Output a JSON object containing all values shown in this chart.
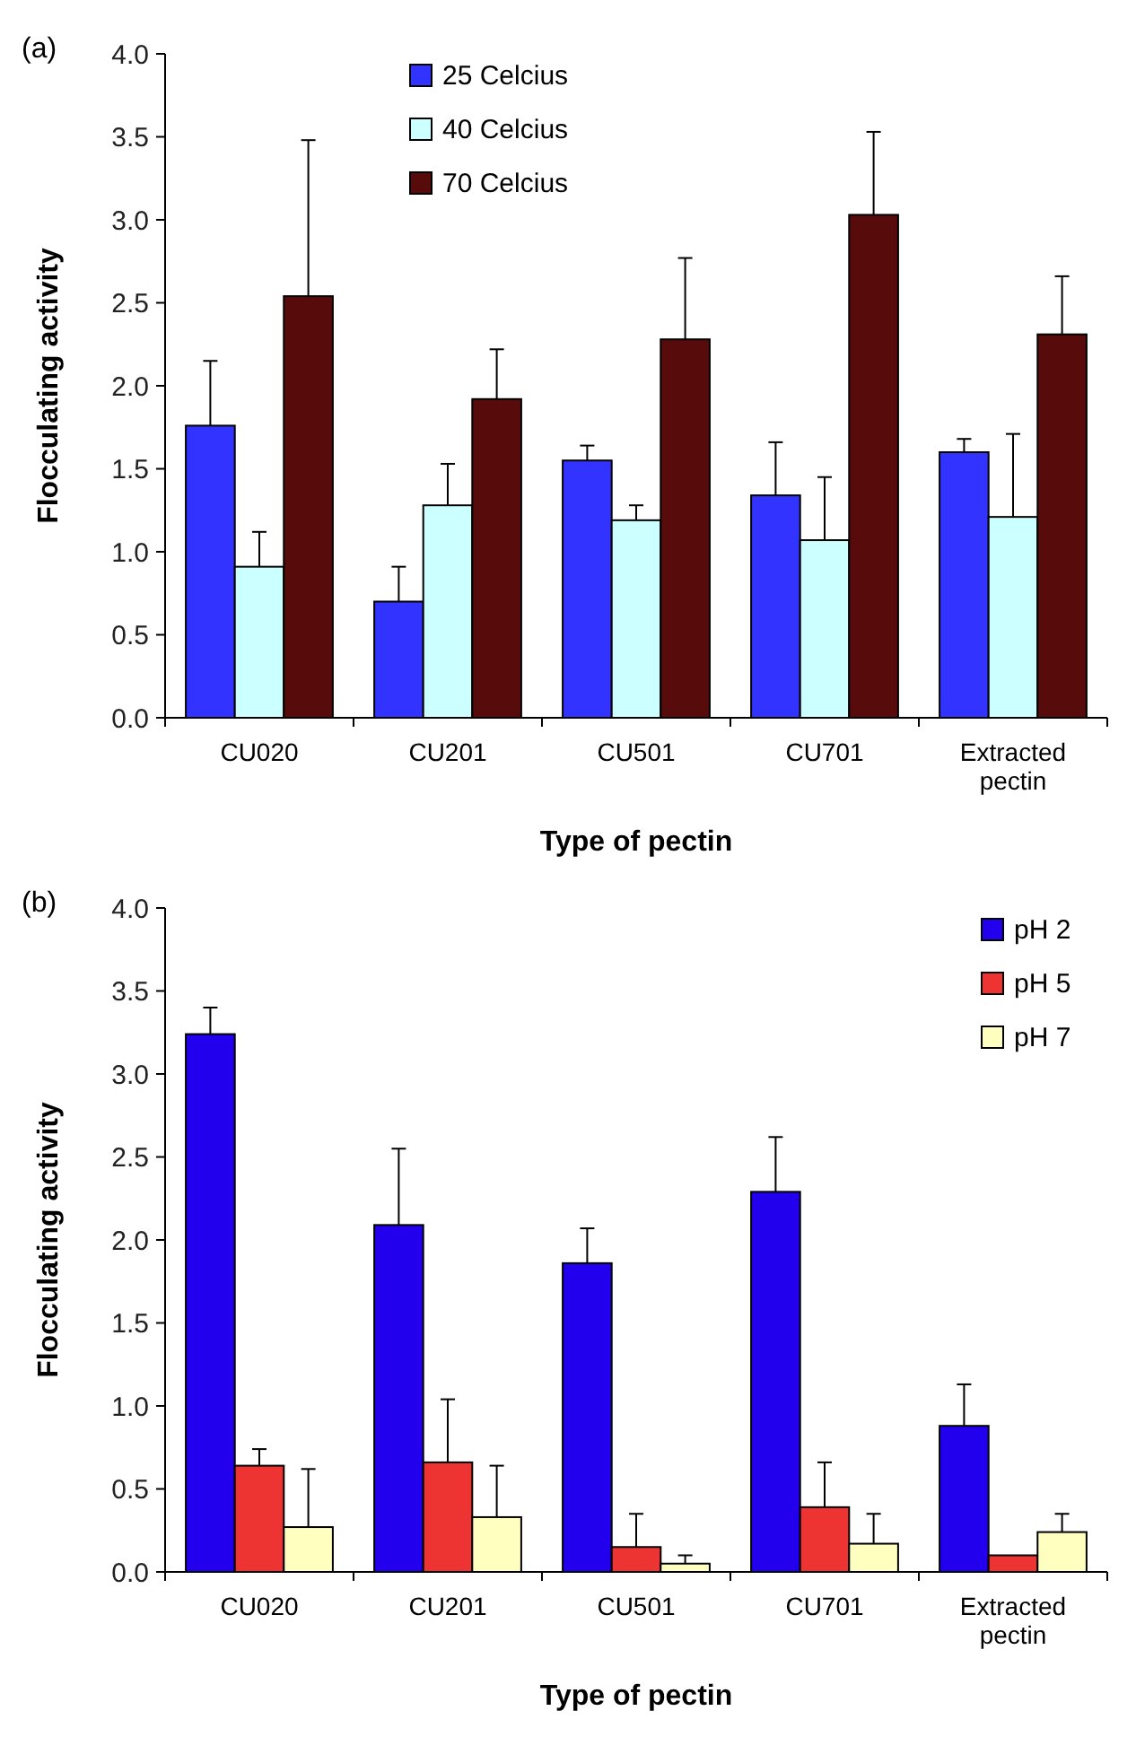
{
  "chart_data": [
    {
      "type": "bar",
      "annotations": [
        "(a)"
      ],
      "xlabel": "Type of pectin",
      "ylabel": "Flocculating activity",
      "categories": [
        "CU020",
        "CU201",
        "CU501",
        "CU701",
        "Extracted pectin"
      ],
      "ylim": [
        0,
        4
      ],
      "yticks": [
        {
          "value": 0,
          "label": "0.0"
        },
        {
          "value": 0.5,
          "label": "0.5"
        },
        {
          "value": 1,
          "label": "1.0"
        },
        {
          "value": 1.5,
          "label": "1.5"
        },
        {
          "value": 2,
          "label": "2.0"
        },
        {
          "value": 2.5,
          "label": "2.5"
        },
        {
          "value": 3,
          "label": "3.0"
        },
        {
          "value": 3.5,
          "label": "3.5"
        },
        {
          "value": 4,
          "label": "4.0"
        }
      ],
      "legend": "top",
      "grid": false,
      "series": [
        {
          "name": "25 Celcius",
          "color": "#3333ff",
          "values": [
            1.76,
            0.7,
            1.55,
            1.34,
            1.6
          ],
          "errors": [
            [
              1.76,
              2.15
            ],
            [
              0.7,
              0.91
            ],
            [
              1.55,
              1.64
            ],
            [
              1.34,
              1.66
            ],
            [
              1.6,
              1.68
            ]
          ]
        },
        {
          "name": "40 Celcius",
          "color": "#ccffff",
          "values": [
            0.91,
            1.28,
            1.19,
            1.07,
            1.21
          ],
          "errors": [
            [
              0.91,
              1.12
            ],
            [
              1.28,
              1.53
            ],
            [
              1.19,
              1.28
            ],
            [
              1.07,
              1.45
            ],
            [
              1.21,
              1.71
            ]
          ]
        },
        {
          "name": "70 Celcius",
          "color": "#580b0b",
          "values": [
            2.54,
            1.92,
            2.28,
            3.03,
            2.31
          ],
          "errors": [
            [
              2.54,
              3.48
            ],
            [
              1.92,
              2.22
            ],
            [
              2.28,
              2.77
            ],
            [
              3.03,
              3.53
            ],
            [
              2.31,
              2.66
            ]
          ]
        }
      ]
    },
    {
      "type": "bar",
      "annotations": [
        "(b)"
      ],
      "xlabel": "Type of pectin",
      "ylabel": "Flocculating activity",
      "categories": [
        "CU020",
        "CU201",
        "CU501",
        "CU701",
        "Extracted pectin"
      ],
      "ylim": [
        0,
        4
      ],
      "yticks": [
        {
          "value": 0,
          "label": "0.0"
        },
        {
          "value": 0.5,
          "label": "0.5"
        },
        {
          "value": 1,
          "label": "1.0"
        },
        {
          "value": 1.5,
          "label": "1.5"
        },
        {
          "value": 2,
          "label": "2.0"
        },
        {
          "value": 2.5,
          "label": "2.5"
        },
        {
          "value": 3,
          "label": "3.0"
        },
        {
          "value": 3.5,
          "label": "3.5"
        },
        {
          "value": 4,
          "label": "4.0"
        }
      ],
      "legend": "top right",
      "grid": false,
      "series": [
        {
          "name": "pH 2",
          "color": "#2200ee",
          "values": [
            3.24,
            2.09,
            1.86,
            2.29,
            0.88
          ],
          "errors": [
            [
              3.24,
              3.4
            ],
            [
              2.09,
              2.55
            ],
            [
              1.86,
              2.07
            ],
            [
              2.29,
              2.62
            ],
            [
              0.88,
              1.13
            ]
          ]
        },
        {
          "name": "pH 5",
          "color": "#ee3333",
          "values": [
            0.64,
            0.66,
            0.15,
            0.39,
            0.1
          ],
          "errors": [
            [
              0.64,
              0.74
            ],
            [
              0.66,
              1.04
            ],
            [
              0.15,
              0.35
            ],
            [
              0.39,
              0.66
            ],
            null
          ]
        },
        {
          "name": "pH 7",
          "color": "#ffffc0",
          "values": [
            0.27,
            0.33,
            0.05,
            0.17,
            0.24
          ],
          "errors": [
            [
              0.27,
              0.62
            ],
            [
              0.33,
              0.64
            ],
            [
              0.05,
              0.1
            ],
            [
              0.17,
              0.35
            ],
            [
              0.24,
              0.35
            ]
          ]
        }
      ]
    }
  ]
}
